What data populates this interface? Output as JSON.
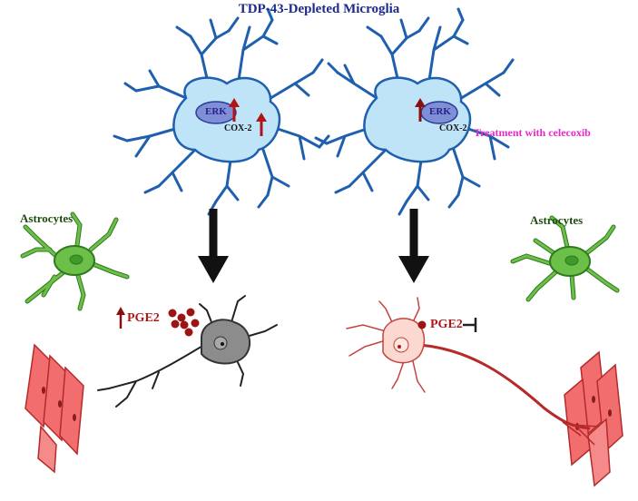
{
  "title": "TDP-43-Depleted Microglia",
  "left_panel": {
    "astrocytes_label": "Astrocytes",
    "erk_label": "ERK",
    "cox_label": "COX-2",
    "pge_label": "PGE2"
  },
  "right_panel": {
    "astrocytes_label": "Astrocytes",
    "erk_label": "ERK",
    "cox_label": "COX-2",
    "pge_label": "PGE2",
    "treatment_label": "Treatment with celecoxib"
  },
  "colors": {
    "title": "#1c2a8c",
    "microglia_fill": "#bfe3f7",
    "microglia_stroke": "#1e5fae",
    "erk_fill": "#7e8fd6",
    "astrocyte_fill": "#6cc04a",
    "astrocyte_stroke": "#2f7a1c",
    "muscle_fill": "#f26d6d",
    "muscle_stroke": "#b52a2a",
    "neuron_gray": "#8c8c8c",
    "neuron_pink": "#fbd9d0",
    "pge": "#9b1515",
    "arrow_up": "#b11616",
    "treatment": "#e629c8"
  }
}
